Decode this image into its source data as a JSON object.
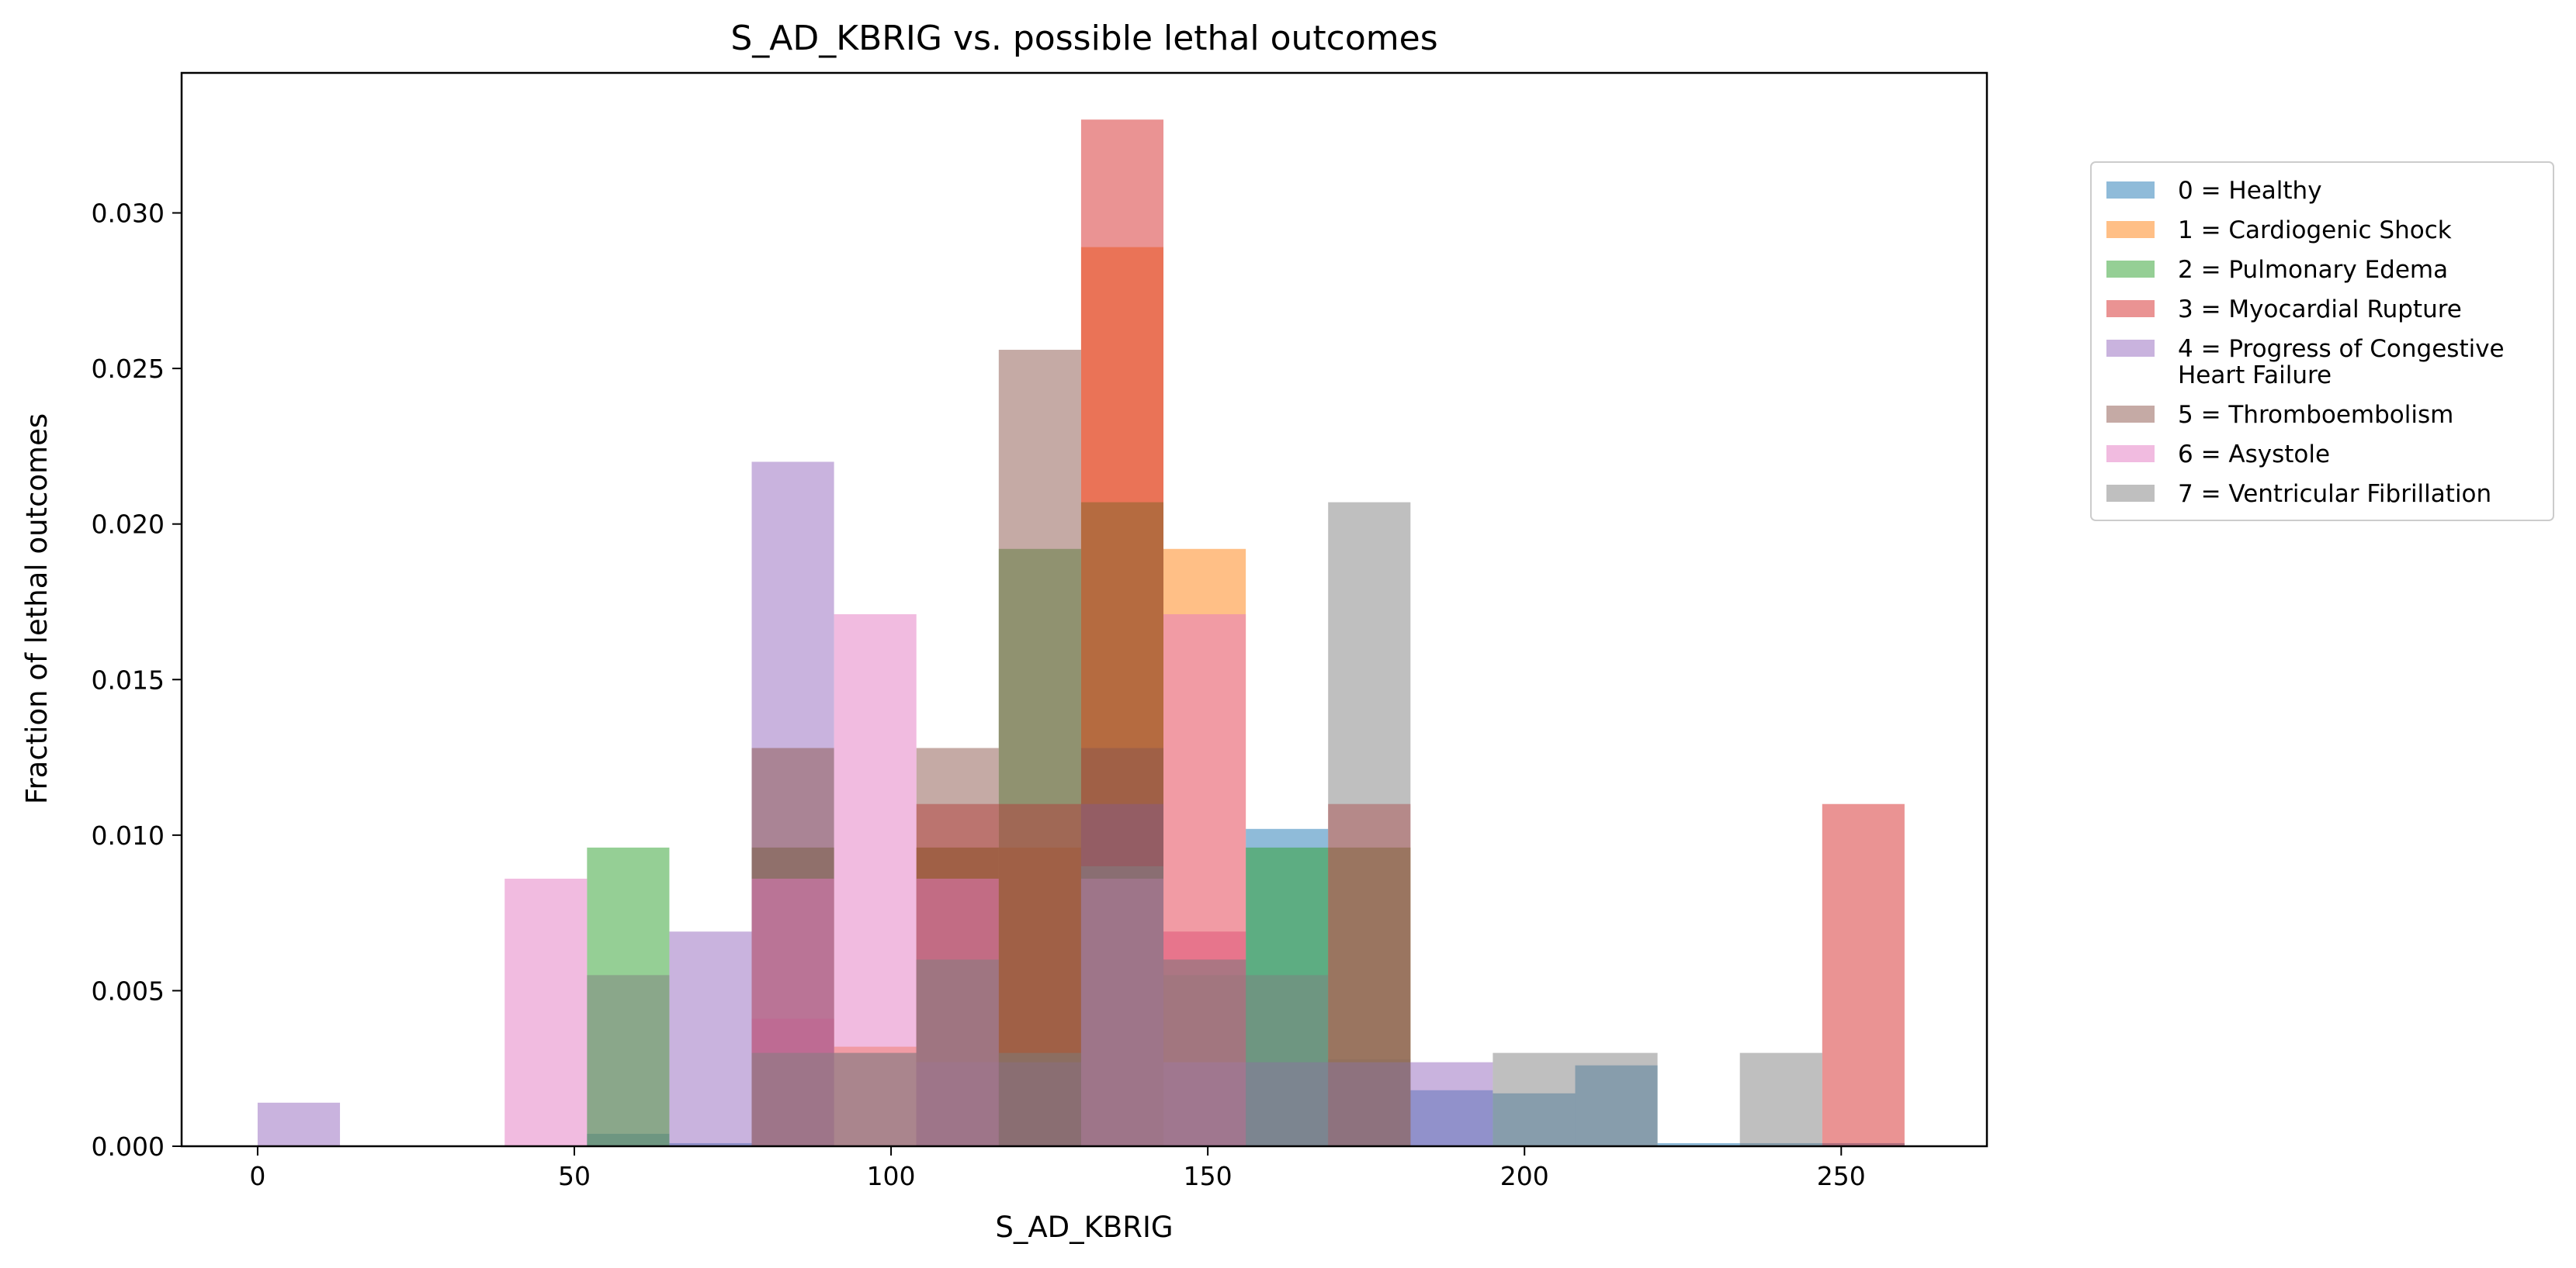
{
  "chart_data": {
    "type": "bar",
    "title": "S_AD_KBRIG vs. possible lethal outcomes",
    "xlabel": "S_AD_KBRIG",
    "ylabel": "Fraction of lethal outcomes",
    "xlim": [
      -12,
      273
    ],
    "ylim": [
      0,
      0.0345
    ],
    "bin_edges": [
      0,
      13,
      26,
      39,
      52,
      65,
      78,
      91,
      104,
      117,
      130,
      143,
      156,
      169,
      182,
      195,
      208,
      221,
      234,
      247,
      260
    ],
    "xticks": [
      0,
      50,
      100,
      150,
      200,
      250
    ],
    "xtick_labels": [
      "0",
      "50",
      "100",
      "150",
      "200",
      "250"
    ],
    "yticks": [
      0.0,
      0.005,
      0.01,
      0.015,
      0.02,
      0.025,
      0.03
    ],
    "ytick_labels": [
      "0.000",
      "0.005",
      "0.010",
      "0.015",
      "0.020",
      "0.025",
      "0.030"
    ],
    "bar_alpha": 0.5,
    "legend_position": "outside-right",
    "series": [
      {
        "name": "0 = Healthy",
        "color": "#1f77b4",
        "values": [
          0,
          0,
          0,
          0,
          0.0004,
          0.0001,
          0.003,
          0.003,
          0.006,
          0.003,
          0.011,
          0.006,
          0.0102,
          0.0028,
          0.0018,
          0.0017,
          0.0026,
          0.0001,
          0.0001,
          0.0001
        ]
      },
      {
        "name": "1 = Cardiogenic Shock",
        "color": "#ff7f0e",
        "values": [
          0,
          0,
          0,
          0,
          0,
          0,
          0.0096,
          0.0032,
          0.0096,
          0.0096,
          0.0289,
          0.0192,
          0,
          0.0096,
          0,
          0,
          0,
          0,
          0,
          0
        ]
      },
      {
        "name": "2 = Pulmonary Edema",
        "color": "#2ca02c",
        "values": [
          0,
          0,
          0,
          0,
          0.0096,
          0,
          0.0096,
          0,
          0.0096,
          0.0192,
          0.0207,
          0.0055,
          0.0096,
          0.0096,
          0,
          0,
          0,
          0,
          0,
          0
        ]
      },
      {
        "name": "3 = Myocardial Rupture",
        "color": "#d62728",
        "values": [
          0,
          0,
          0,
          0,
          0,
          0,
          0.0041,
          0,
          0.011,
          0.011,
          0.033,
          0.0069,
          0,
          0.011,
          0,
          0,
          0,
          0,
          0,
          0.011
        ]
      },
      {
        "name": "4 = Progress of Congestive\nHeart Failure",
        "color": "#9467bd",
        "values": [
          0.0014,
          0,
          0,
          0,
          0,
          0.0069,
          0.022,
          0,
          0.0027,
          0.0027,
          0.011,
          0.0027,
          0.0027,
          0.0027,
          0.0027,
          0,
          0,
          0,
          0,
          0
        ]
      },
      {
        "name": "5 = Thromboembolism",
        "color": "#8c564b",
        "values": [
          0,
          0,
          0,
          0,
          0,
          0,
          0.0128,
          0,
          0.0128,
          0.0256,
          0.0128,
          0,
          0,
          0,
          0,
          0,
          0,
          0,
          0,
          0
        ]
      },
      {
        "name": "6 = Asystole",
        "color": "#e377c2",
        "values": [
          0,
          0,
          0,
          0.0086,
          0,
          0,
          0.0086,
          0.0171,
          0.0086,
          0,
          0.0086,
          0.0171,
          0,
          0,
          0,
          0,
          0,
          0,
          0,
          0
        ]
      },
      {
        "name": "7 = Ventricular Fibrillation",
        "color": "#7f7f7f",
        "values": [
          0,
          0,
          0,
          0,
          0.0055,
          0,
          0.003,
          0.003,
          0.006,
          0.003,
          0.009,
          0.006,
          0.0055,
          0.0207,
          0,
          0.003,
          0.003,
          0,
          0.003,
          0
        ]
      }
    ]
  }
}
